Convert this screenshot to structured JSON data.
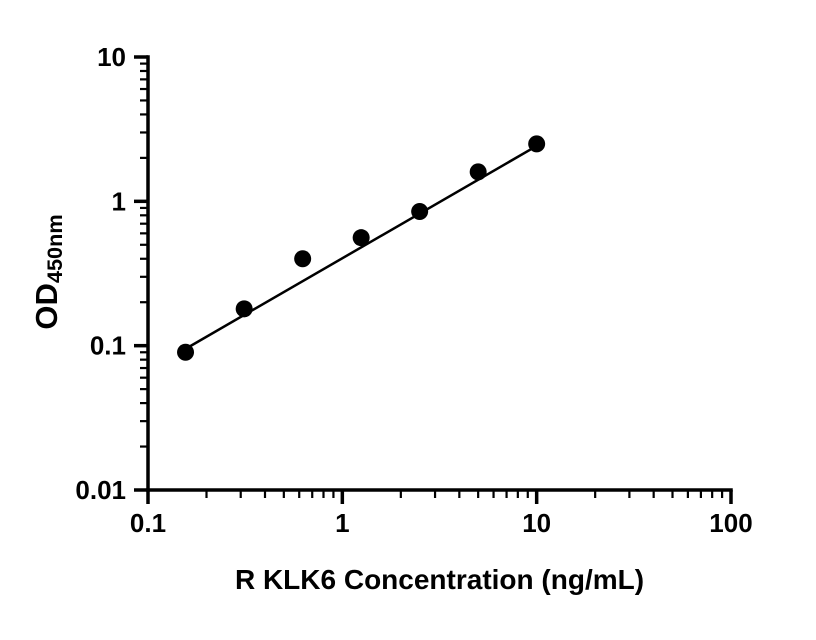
{
  "figure": {
    "background_color": "#ffffff",
    "axis_color": "#000000"
  },
  "chart_data": {
    "type": "scatter",
    "title": "",
    "xlabel": "R KLK6 Concentration (ng/mL)",
    "ylabel": "OD450nm",
    "ylabel_main": "OD",
    "ylabel_sub": "450nm",
    "xscale": "log",
    "yscale": "log",
    "xlim": [
      0.1,
      100
    ],
    "ylim": [
      0.01,
      10
    ],
    "x_ticks": [
      0.1,
      1,
      10,
      100
    ],
    "x_tick_labels": [
      "0.1",
      "1",
      "10",
      "100"
    ],
    "y_ticks": [
      0.01,
      0.1,
      1,
      10
    ],
    "y_tick_labels": [
      "0.01",
      "0.1",
      "1",
      "10"
    ],
    "grid": false,
    "legend": "none",
    "series": [
      {
        "name": "standard-curve-points",
        "type": "scatter",
        "marker": "circle",
        "marker_color": "#000000",
        "x": [
          0.156,
          0.3125,
          0.625,
          1.25,
          2.5,
          5,
          10
        ],
        "y": [
          0.09,
          0.18,
          0.4,
          0.56,
          0.85,
          1.6,
          2.5
        ]
      },
      {
        "name": "fit-line",
        "type": "line",
        "line_color": "#000000",
        "x": [
          0.156,
          10
        ],
        "y": [
          0.095,
          2.42
        ]
      }
    ]
  }
}
